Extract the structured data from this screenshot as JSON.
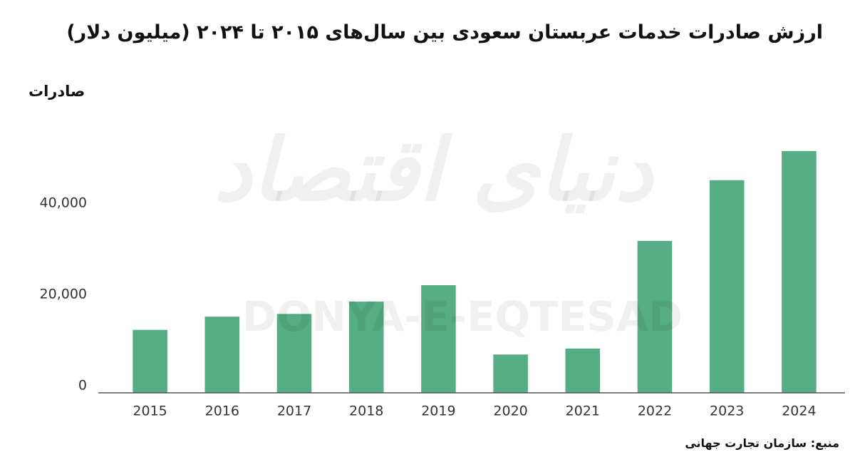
{
  "chart_data": {
    "type": "bar",
    "title": "ارزش صادرات خدمات عربستان سعودی بین سال‌های ۲۰۱۵ تا ۲۰۲۴ (میلیون دلار)",
    "y_label": "صادرات",
    "source": "منبع: سازمان تجارت جهانی",
    "watermark": "دنیای اقتصاد",
    "watermark_latin": "DONYA-E-EQTESAD",
    "categories": [
      "2015",
      "2016",
      "2017",
      "2018",
      "2019",
      "2020",
      "2021",
      "2022",
      "2023",
      "2024"
    ],
    "values": [
      13800,
      16700,
      17300,
      20000,
      23600,
      8400,
      9700,
      33300,
      46600,
      53000
    ],
    "color": "#55ad85",
    "ylim": [
      0,
      55000
    ],
    "yticks": [
      0,
      {
        "value": 20000,
        "label": "20,000"
      },
      {
        "value": 40000,
        "label": "40,000"
      }
    ],
    "grid": false
  }
}
